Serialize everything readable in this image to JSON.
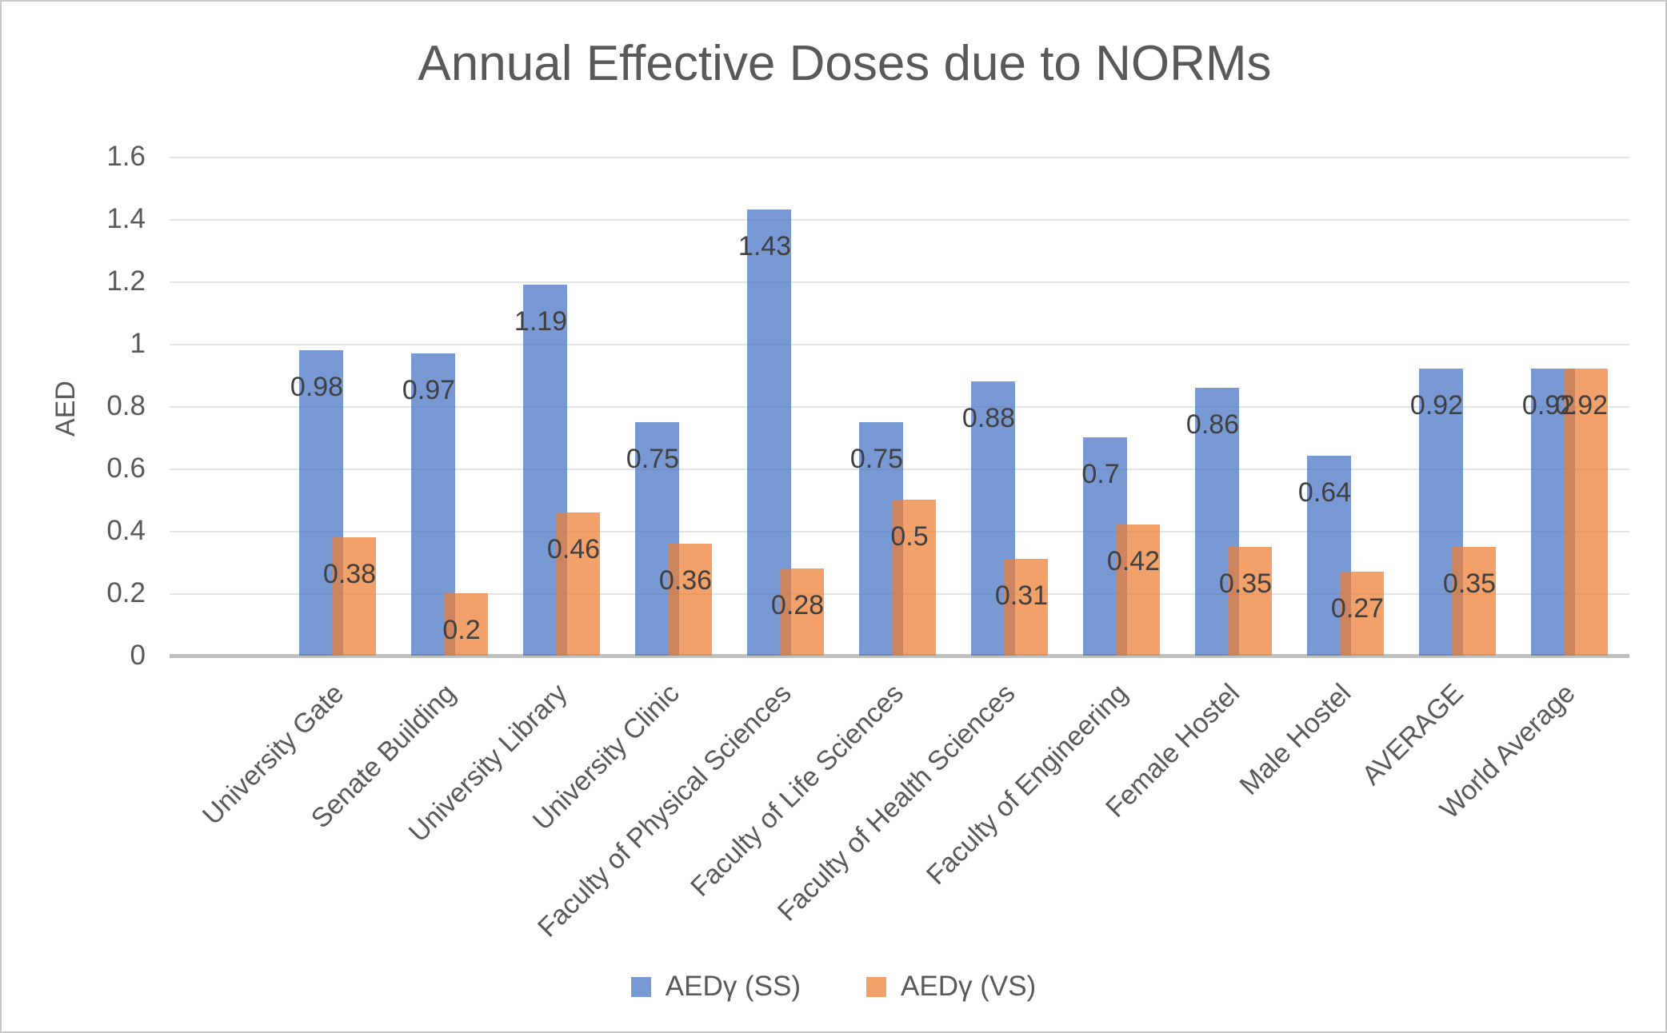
{
  "title": "Annual Effective Doses due to NORMs",
  "y_axis": {
    "title": "AED",
    "min": 0,
    "max": 1.6,
    "step": 0.2
  },
  "colors": {
    "series_ss": "#4472C4",
    "series_vs": "#ED7D31",
    "fill_opacity": 0.72,
    "axis_text": "#595959",
    "data_label_text": "#404040",
    "gridline": "#E4E4E4",
    "axis_line": "#BFBFBF",
    "border": "#C9C9C9"
  },
  "chart_data": {
    "type": "bar",
    "title": "Annual Effective Doses due to NORMs",
    "xlabel": "",
    "ylabel": "AED",
    "ylim": [
      0,
      1.6
    ],
    "ytick_step": 0.2,
    "grid": true,
    "data_labels": true,
    "legend_position": "bottom",
    "categories": [
      "University Gate",
      "Senate Building",
      "University Library",
      "University Clinic",
      "Faculty of Physical Sciences",
      "Faculty of Life Sciences",
      "Faculty of Health Sciences",
      "Faculty of Engineering",
      "Female Hostel",
      "Male Hostel",
      "AVERAGE",
      "World Average"
    ],
    "series": [
      {
        "name": "AEDγ (SS)",
        "values": [
          0.98,
          0.97,
          1.19,
          0.75,
          1.43,
          0.75,
          0.88,
          0.7,
          0.86,
          0.64,
          0.92,
          0.92
        ]
      },
      {
        "name": "AEDγ (VS)",
        "values": [
          0.38,
          0.2,
          0.46,
          0.36,
          0.28,
          0.5,
          0.31,
          0.42,
          0.35,
          0.27,
          0.35,
          0.92
        ]
      }
    ]
  }
}
